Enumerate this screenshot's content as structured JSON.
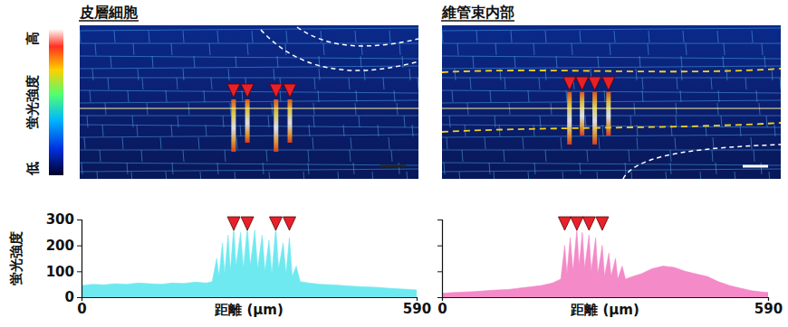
{
  "colorbar": {
    "title": "蛍光強度",
    "high": "高",
    "low": "低"
  },
  "chart_data": [
    {
      "type": "area",
      "title": "皮層細胞",
      "xlabel": "距離 (μm)",
      "ylabel": "蛍光強度",
      "x": [
        0,
        20,
        40,
        60,
        80,
        100,
        120,
        140,
        160,
        180,
        200,
        220,
        230,
        238,
        242,
        248,
        252,
        258,
        262,
        268,
        272,
        280,
        285,
        292,
        297,
        305,
        310,
        318,
        323,
        330,
        335,
        342,
        347,
        355,
        360,
        366,
        371,
        378,
        385,
        400,
        420,
        440,
        460,
        480,
        500,
        520,
        540,
        560,
        580,
        590
      ],
      "values": [
        45,
        50,
        48,
        52,
        50,
        55,
        52,
        50,
        55,
        53,
        58,
        55,
        60,
        150,
        80,
        210,
        90,
        240,
        100,
        270,
        120,
        250,
        110,
        270,
        120,
        260,
        110,
        240,
        100,
        220,
        90,
        270,
        110,
        210,
        90,
        230,
        80,
        120,
        60,
        55,
        50,
        48,
        45,
        42,
        40,
        38,
        35,
        32,
        30,
        28
      ],
      "color": "#6fe9f0",
      "xlim": [
        0,
        590
      ],
      "ylim": [
        0,
        300
      ],
      "xticks": [
        0,
        590
      ],
      "yticks": [
        0,
        100,
        200,
        300
      ],
      "peaks": [
        268,
        292,
        342,
        366
      ]
    },
    {
      "type": "area",
      "title": "維管束内部",
      "xlabel": "距離 (μm)",
      "x": [
        0,
        20,
        40,
        60,
        80,
        100,
        120,
        140,
        160,
        180,
        200,
        215,
        222,
        226,
        232,
        237,
        244,
        248,
        254,
        258,
        266,
        270,
        278,
        282,
        290,
        294,
        302,
        306,
        314,
        318,
        326,
        332,
        345,
        360,
        380,
        400,
        420,
        440,
        460,
        480,
        500,
        520,
        540,
        560,
        580,
        590
      ],
      "values": [
        15,
        18,
        20,
        22,
        25,
        28,
        30,
        35,
        40,
        45,
        55,
        70,
        200,
        90,
        230,
        100,
        260,
        120,
        250,
        110,
        240,
        100,
        230,
        90,
        200,
        80,
        170,
        80,
        150,
        70,
        120,
        70,
        80,
        90,
        110,
        120,
        115,
        100,
        90,
        80,
        60,
        45,
        35,
        25,
        20,
        18
      ],
      "color": "#f48ac8",
      "xlim": [
        0,
        590
      ],
      "ylim": [
        0,
        300
      ],
      "xticks": [
        0,
        590
      ],
      "yticks": [
        0,
        100,
        200,
        300
      ],
      "tick_labels": "x",
      "peaks": [
        222,
        244,
        266,
        290
      ]
    }
  ]
}
